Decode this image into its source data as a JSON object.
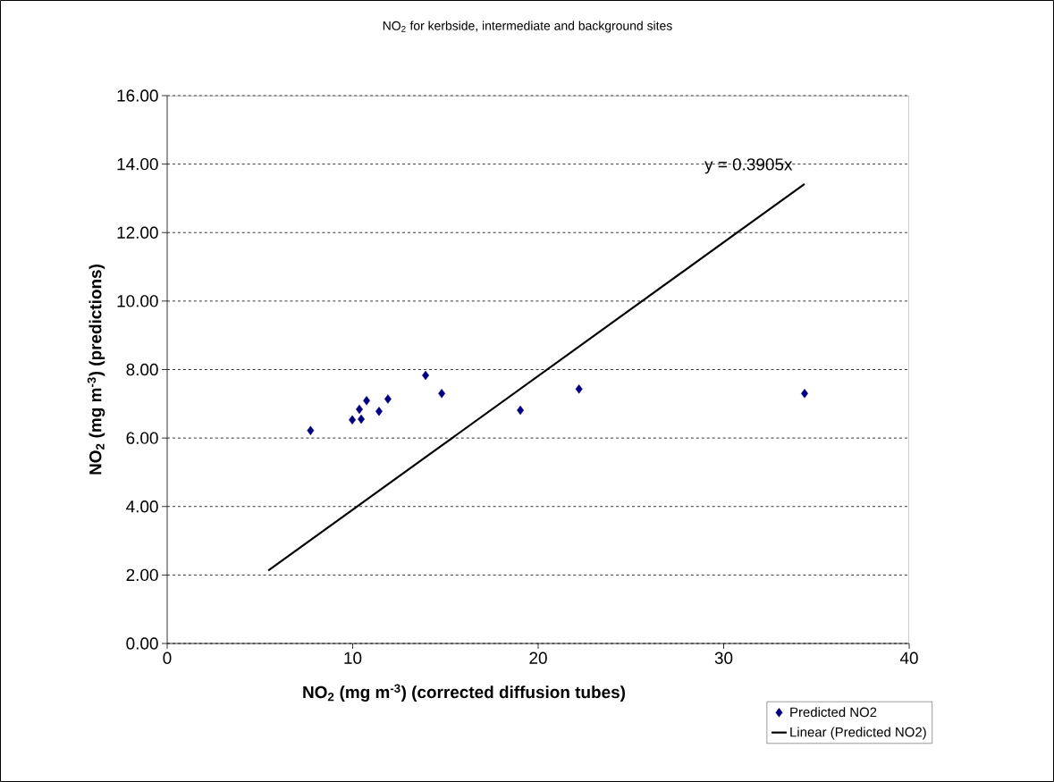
{
  "chart_data": {
    "type": "scatter",
    "title": "NO$_{2}$ for kerbside, intermediate and background sites",
    "xlabel": "**NO$_{2}$ (mg m$^{-3}$) (corrected diffusion tubes)**",
    "ylabel": "**NO$_{2}$ (mg m$^{-3}$) (predictions)**",
    "xlim": [
      0,
      40
    ],
    "xticks": [
      0,
      10,
      20,
      30,
      40
    ],
    "ylim": [
      0,
      16
    ],
    "yticks": [
      {
        "value": 0,
        "label": "0.00"
      },
      {
        "value": 2,
        "label": "2.00"
      },
      {
        "value": 4,
        "label": "4.00"
      },
      {
        "value": 6,
        "label": "6.00"
      },
      {
        "value": 8,
        "label": "8.00"
      },
      {
        "value": 10,
        "label": "10.00"
      },
      {
        "value": 12,
        "label": "12.00"
      },
      {
        "value": 14,
        "label": "14.00"
      },
      {
        "value": 16,
        "label": "16.00"
      }
    ],
    "grid": "y",
    "legend": "bottom right",
    "series": [
      {
        "name": "Predicted NO2",
        "marker": "diamond",
        "color": "#000080",
        "x": [
          7.73,
          9.98,
          10.46,
          10.36,
          10.75,
          11.42,
          11.9,
          13.93,
          14.8,
          19.04,
          22.2,
          34.36
        ],
        "values": [
          6.22,
          6.53,
          6.55,
          6.84,
          7.09,
          6.78,
          7.14,
          7.83,
          7.3,
          6.81,
          7.43,
          7.3
        ]
      },
      {
        "name": "Linear (Predicted NO2)",
        "type": "line",
        "marker": "none",
        "color": "#000000",
        "x": [
          5.45,
          34.36
        ],
        "values": [
          2.13,
          13.42
        ]
      }
    ],
    "annotations": [
      {
        "text": "y = 0.3905x",
        "x": 34.36,
        "y": 13.42
      }
    ]
  }
}
